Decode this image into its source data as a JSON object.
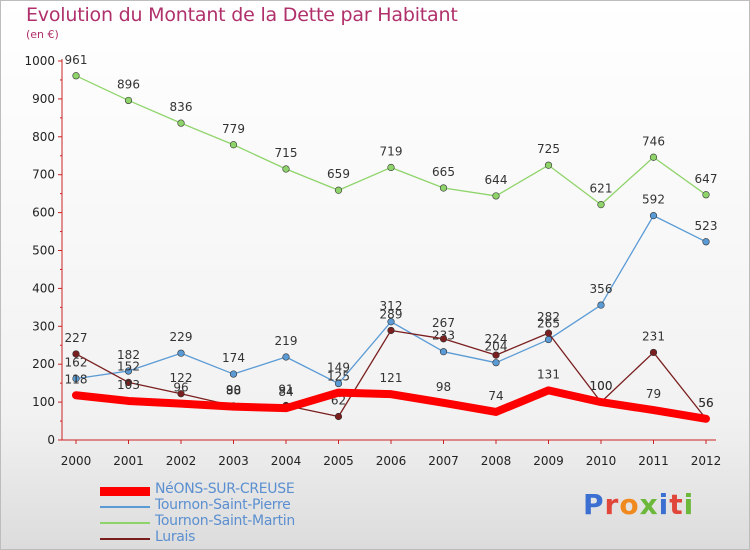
{
  "page": {
    "title": "Evolution du Montant de la Dette par Habitant",
    "subtitle": "(en €)",
    "brand": "Proxiti"
  },
  "chart_data": {
    "type": "line",
    "title": "Evolution du Montant de la Dette par Habitant",
    "subtitle": "(en €)",
    "xlabel": "",
    "ylabel": "",
    "ylim": [
      0,
      1000
    ],
    "y_ticks": [
      0,
      100,
      200,
      300,
      400,
      500,
      600,
      700,
      800,
      900,
      1000
    ],
    "categories": [
      "2000",
      "2001",
      "2002",
      "2003",
      "2004",
      "2005",
      "2006",
      "2007",
      "2008",
      "2009",
      "2010",
      "2011",
      "2012"
    ],
    "grid": false,
    "legend_position": "bottom-left",
    "series": [
      {
        "name": "NéONS-SUR-CREUSE",
        "color": "#ff0000",
        "values": [
          118,
          103,
          96,
          88,
          84,
          125,
          121,
          98,
          74,
          131,
          100,
          79,
          56
        ]
      },
      {
        "name": "Tournon-Saint-Pierre",
        "color": "#5b9bd5",
        "values": [
          162,
          182,
          229,
          174,
          219,
          149,
          312,
          233,
          204,
          265,
          356,
          592,
          523
        ]
      },
      {
        "name": "Tournon-Saint-Martin",
        "color": "#8fd46a",
        "values": [
          961,
          896,
          836,
          779,
          715,
          659,
          719,
          665,
          644,
          725,
          621,
          746,
          647
        ]
      },
      {
        "name": "Lurais",
        "color": "#7a1f1f",
        "values": [
          227,
          152,
          122,
          90,
          91,
          62,
          289,
          267,
          224,
          282,
          100,
          231,
          56
        ]
      }
    ]
  }
}
